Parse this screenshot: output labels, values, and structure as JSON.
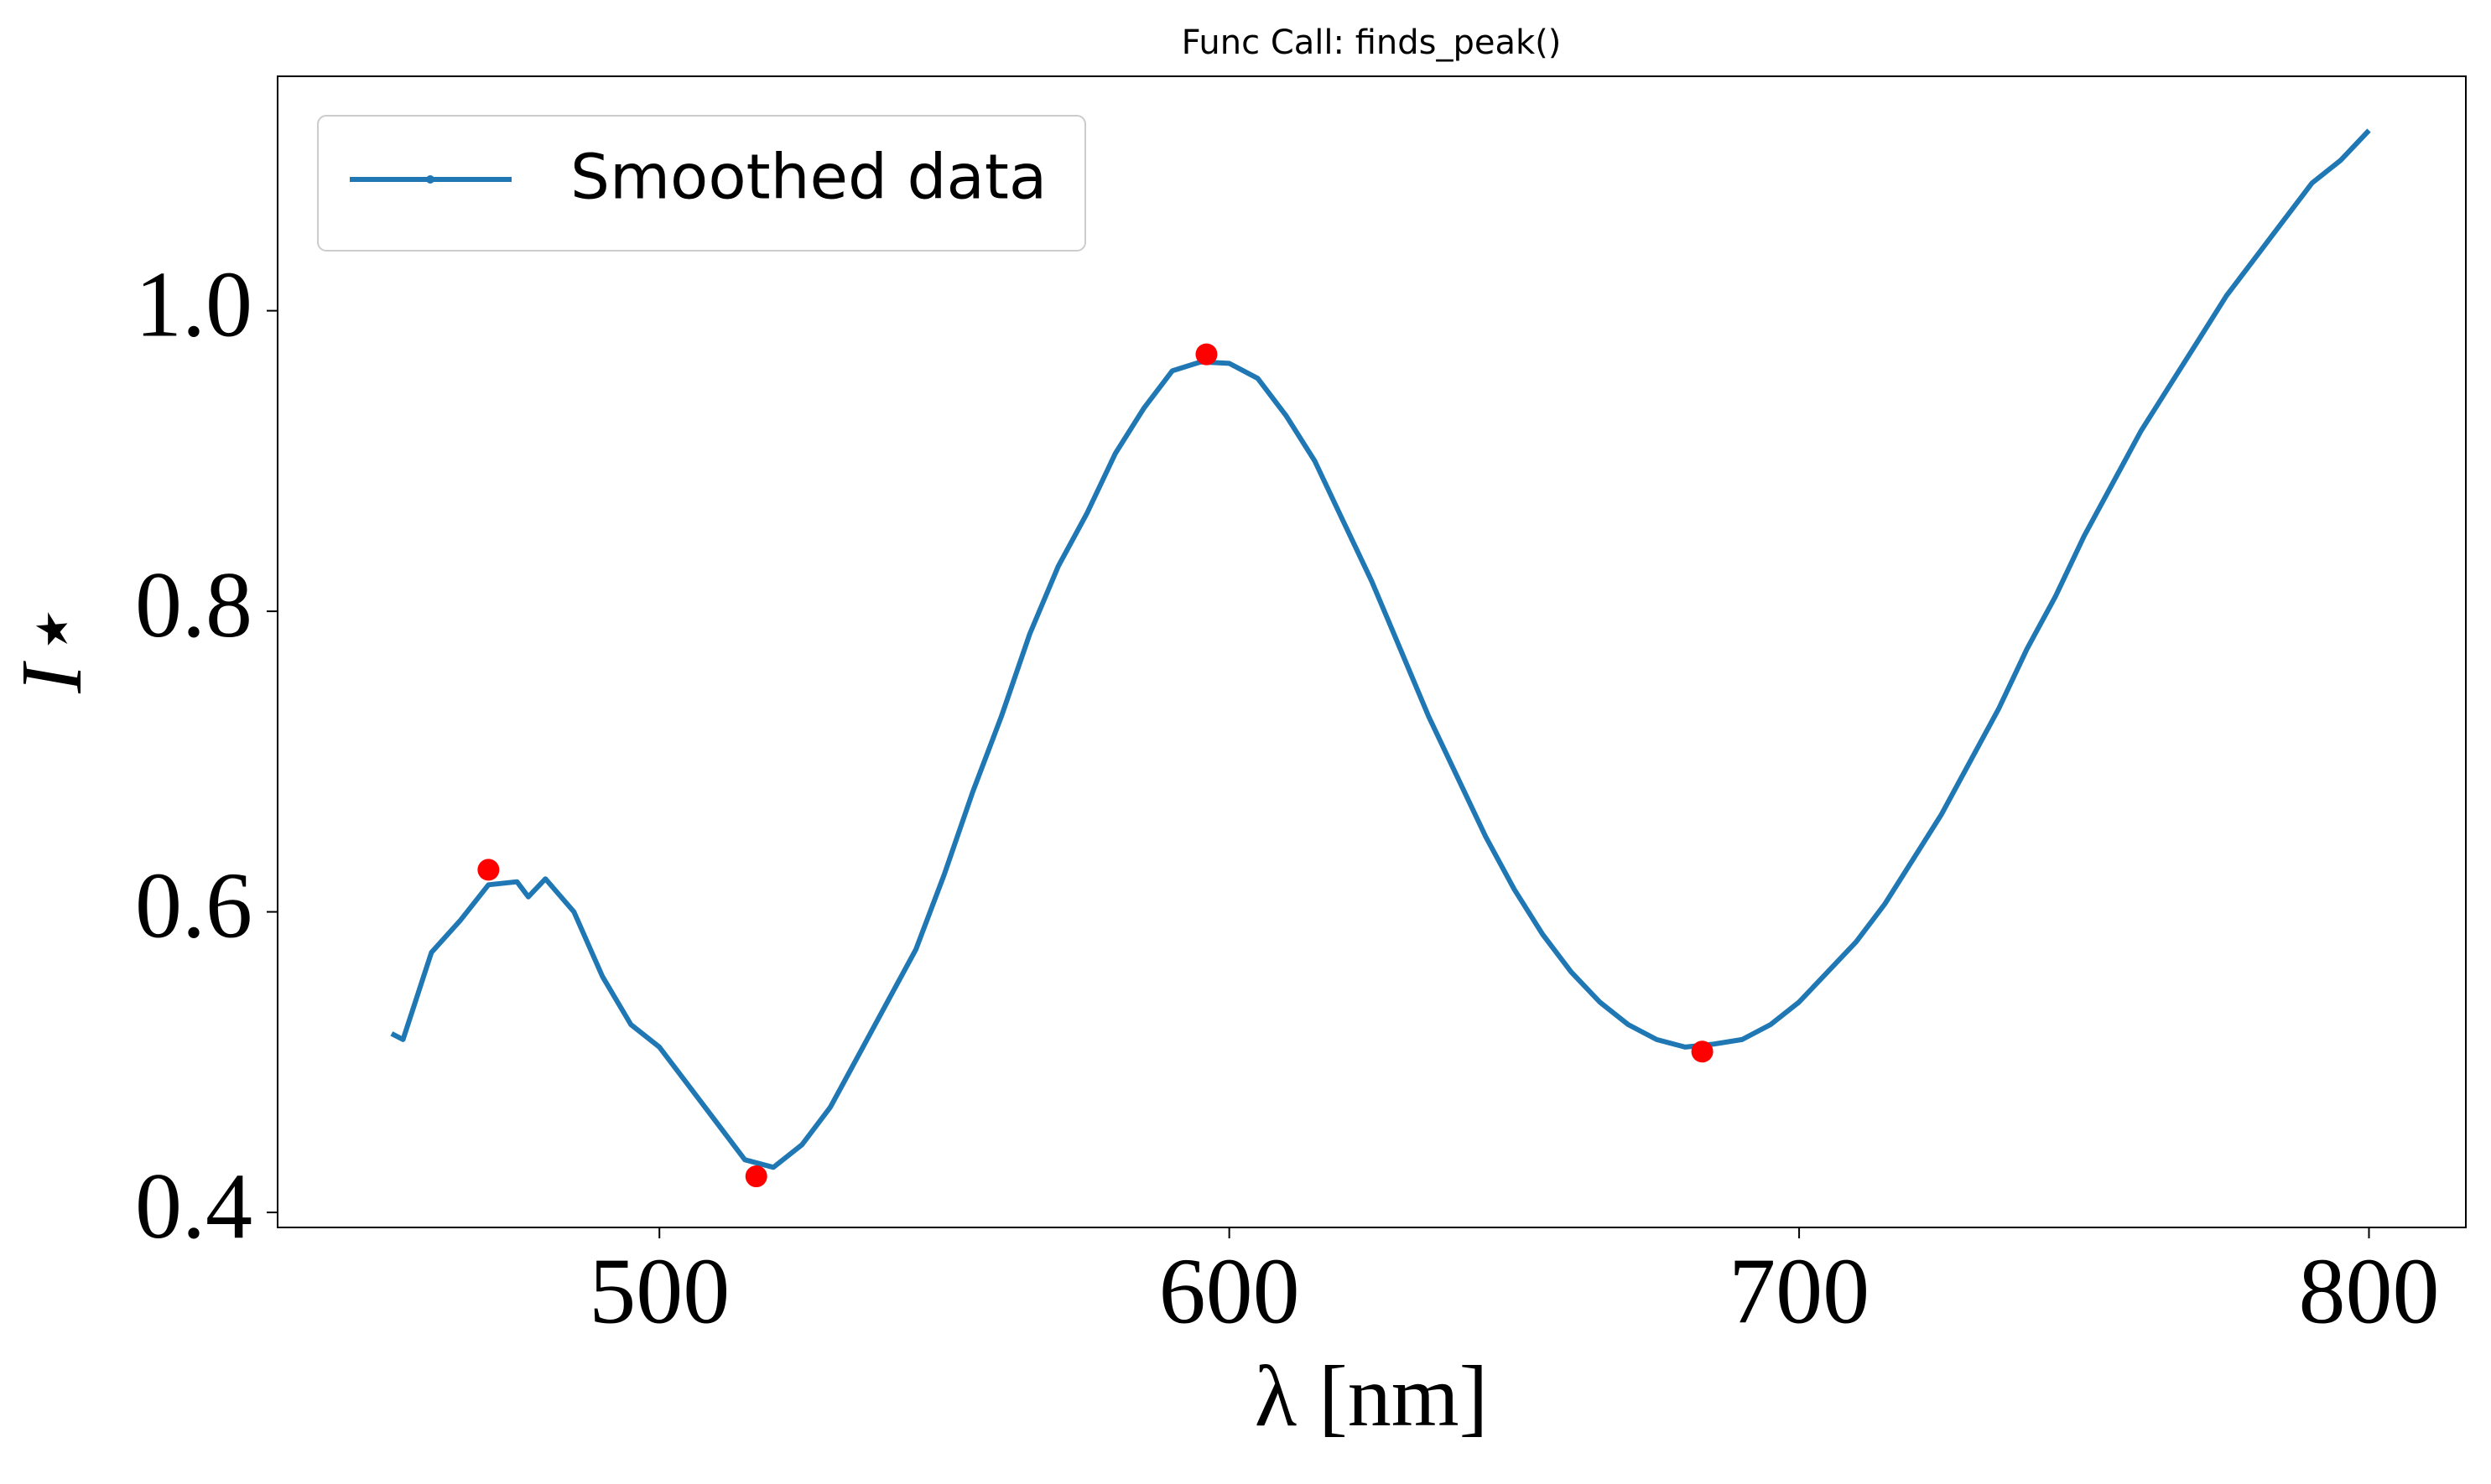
{
  "chart_data": {
    "type": "line",
    "title": "Func Call: finds_peak()",
    "xlabel": "λ [nm]",
    "ylabel": "I⋆",
    "xlim": [
      433,
      817
    ],
    "ylim": [
      0.39,
      1.156
    ],
    "xticks": [
      500,
      600,
      700,
      800
    ],
    "yticks": [
      0.4,
      0.6,
      0.8,
      {
        "value": 1,
        "label": "1.0"
      }
    ],
    "legend": "upper left",
    "series": [
      {
        "name": "Smoothed data",
        "color": "#1f77b4",
        "x": [
          453,
          455,
          460,
          465,
          470,
          475,
          477,
          480,
          485,
          490,
          495,
          500,
          505,
          510,
          515,
          520,
          525,
          530,
          535,
          540,
          545,
          550,
          555,
          560,
          565,
          570,
          575,
          580,
          585,
          590,
          595,
          600,
          605,
          610,
          615,
          620,
          625,
          630,
          635,
          640,
          645,
          650,
          655,
          660,
          665,
          670,
          675,
          680,
          685,
          690,
          695,
          700,
          705,
          710,
          715,
          720,
          725,
          730,
          735,
          740,
          745,
          750,
          755,
          760,
          765,
          770,
          775,
          780,
          785,
          790,
          795,
          800
        ],
        "values": [
          0.519,
          0.515,
          0.573,
          0.594,
          0.618,
          0.62,
          0.61,
          0.622,
          0.6,
          0.557,
          0.525,
          0.51,
          0.485,
          0.46,
          0.435,
          0.43,
          0.445,
          0.47,
          0.505,
          0.54,
          0.575,
          0.625,
          0.68,
          0.73,
          0.785,
          0.83,
          0.865,
          0.905,
          0.935,
          0.96,
          0.966,
          0.965,
          0.955,
          0.93,
          0.9,
          0.86,
          0.82,
          0.775,
          0.73,
          0.69,
          0.65,
          0.615,
          0.585,
          0.56,
          0.54,
          0.525,
          0.515,
          0.51,
          0.512,
          0.515,
          0.525,
          0.54,
          0.56,
          0.58,
          0.605,
          0.635,
          0.665,
          0.7,
          0.735,
          0.775,
          0.81,
          0.85,
          0.885,
          0.92,
          0.95,
          0.98,
          1.01,
          1.035,
          1.06,
          1.085,
          1.1,
          1.12
        ]
      }
    ],
    "peaks": {
      "color": "#ff0000",
      "x": [
        470,
        517,
        596,
        683
      ],
      "values": [
        0.628,
        0.424,
        0.971,
        0.507
      ]
    }
  }
}
